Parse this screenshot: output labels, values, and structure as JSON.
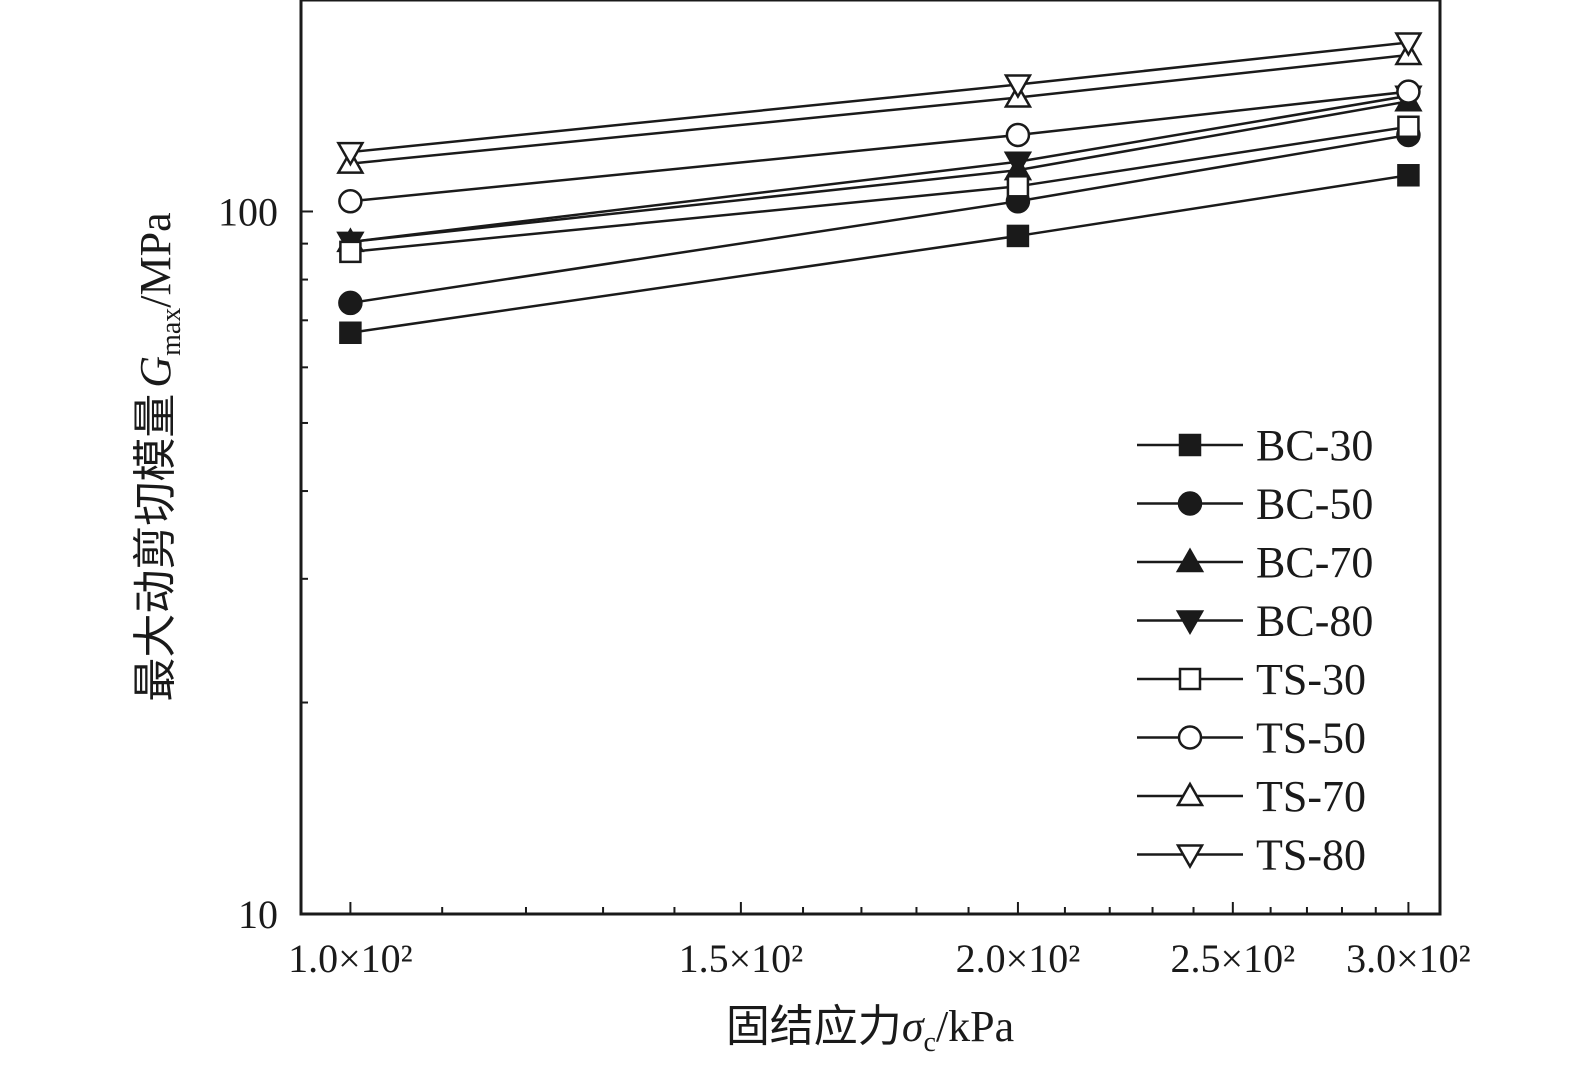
{
  "chart_data": {
    "type": "line",
    "xscale": "log",
    "yscale": "log",
    "xlim": [
      95,
      310
    ],
    "ylim": [
      10,
      200
    ],
    "x": [
      100,
      200,
      300
    ],
    "xticks": [
      {
        "value": 100,
        "label": "1.0×10²"
      },
      {
        "value": 150,
        "label": "1.5×10²"
      },
      {
        "value": 200,
        "label": "2.0×10²"
      },
      {
        "value": 250,
        "label": "2.5×10²"
      },
      {
        "value": 300,
        "label": "3.0×10²"
      }
    ],
    "yticks": [
      {
        "value": 10,
        "label": "10"
      },
      {
        "value": 100,
        "label": "100"
      }
    ],
    "xlabel_main": "固结应力",
    "xlabel_symbol": "σ",
    "xlabel_sub": "c",
    "xlabel_unit": "/kPa",
    "ylabel_main": "最大动剪切模量",
    "ylabel_symbol": "G",
    "ylabel_sub": "max",
    "ylabel_unit": "/MPa",
    "legend_position": "lower-right",
    "series": [
      {
        "name": "BC-30",
        "marker": "square",
        "filled": true,
        "values": [
          67.2,
          92.3,
          112.6
        ]
      },
      {
        "name": "BC-50",
        "marker": "circle",
        "filled": true,
        "values": [
          74.1,
          103.4,
          128.5
        ]
      },
      {
        "name": "BC-70",
        "marker": "triangle-up",
        "filled": true,
        "values": [
          90.5,
          114.5,
          143.5
        ]
      },
      {
        "name": "BC-80",
        "marker": "triangle-down",
        "filled": true,
        "values": [
          90.5,
          117.7,
          146.1
        ]
      },
      {
        "name": "TS-30",
        "marker": "square",
        "filled": false,
        "values": [
          87.6,
          108.6,
          132.0
        ]
      },
      {
        "name": "TS-50",
        "marker": "circle",
        "filled": false,
        "values": [
          103.4,
          128.5,
          148.1
        ]
      },
      {
        "name": "TS-70",
        "marker": "triangle-up",
        "filled": false,
        "values": [
          117.0,
          145.3,
          167.0
        ]
      },
      {
        "name": "TS-80",
        "marker": "triangle-down",
        "filled": false,
        "values": [
          121.5,
          151.6,
          174.0
        ]
      }
    ]
  }
}
